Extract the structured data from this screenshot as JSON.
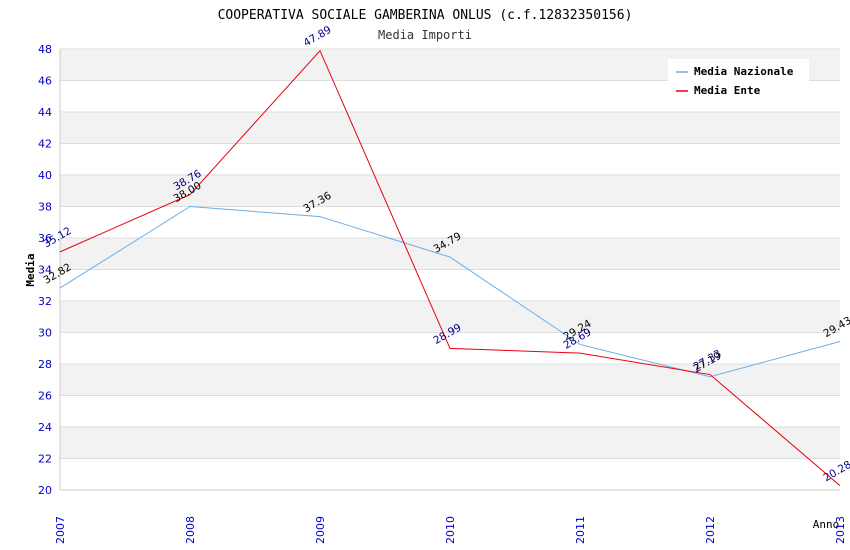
{
  "chart_data": {
    "type": "line",
    "title": "COOPERATIVA SOCIALE GAMBERINA ONLUS (c.f.12832350156)",
    "subtitle": "Media Importi",
    "xlabel": "Anno",
    "ylabel": "Media",
    "categories": [
      "2007",
      "2008",
      "2009",
      "2010",
      "2011",
      "2012",
      "2013"
    ],
    "ylim": [
      20,
      48
    ],
    "yticks": [
      "20",
      "22",
      "24",
      "26",
      "28",
      "30",
      "32",
      "34",
      "36",
      "38",
      "40",
      "42",
      "44",
      "46",
      "48"
    ],
    "legend_position": "top-right",
    "series": [
      {
        "name": "Media Nazionale",
        "color": "#6aaee8",
        "label_color": "#000000",
        "values": [
          32.82,
          38.0,
          37.36,
          34.79,
          29.24,
          27.19,
          29.43
        ],
        "labels": [
          "32.82",
          "38.00",
          "37.36",
          "34.79",
          "29.24",
          "27.19",
          "29.43"
        ]
      },
      {
        "name": "Media Ente",
        "color": "#e8000e",
        "label_color": "#00008b",
        "values": [
          35.12,
          38.76,
          47.89,
          28.99,
          28.69,
          27.33,
          20.28
        ],
        "labels": [
          "35.12",
          "38.76",
          "47.89",
          "28.99",
          "28.69",
          "27.33",
          "20.28"
        ]
      }
    ],
    "colors": {
      "axis_text": "#0000cc",
      "band": "#f2f2f2",
      "grid": "#dddddd"
    }
  }
}
